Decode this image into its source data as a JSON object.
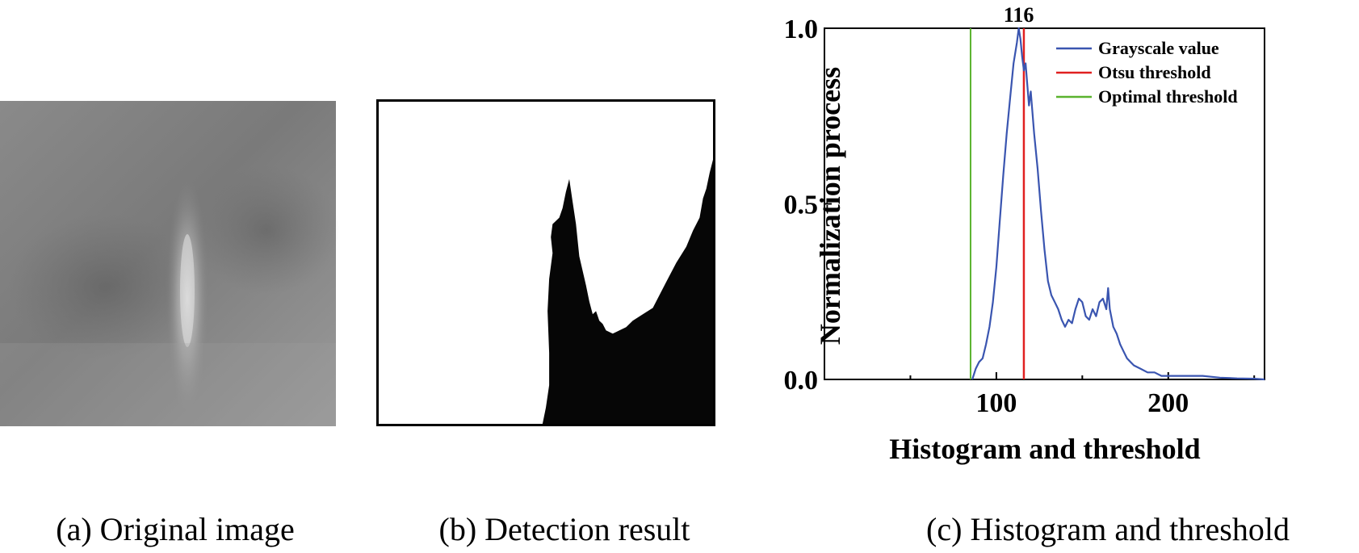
{
  "captions": {
    "a": "(a) Original image",
    "b": "(b) Detection result",
    "c": "(c) Histogram and threshold"
  },
  "chart_data": {
    "type": "line",
    "xlabel": "Histogram and threshold",
    "ylabel": "Normalization process",
    "xlim": [
      0,
      256
    ],
    "ylim": [
      0,
      1.0
    ],
    "xticks": [
      100,
      200
    ],
    "yticks": [
      0.0,
      0.5,
      1.0
    ],
    "ytick_labels": [
      "0.0",
      "0.5",
      "1.0"
    ],
    "grid": false,
    "legend_position": "top-right",
    "peak_label": "116",
    "peak_label_x": 113,
    "series": [
      {
        "name": "Grayscale value",
        "color": "#3a55b0",
        "x": [
          86,
          88,
          90,
          92,
          94,
          96,
          98,
          100,
          102,
          104,
          106,
          108,
          110,
          112,
          113,
          114,
          115,
          116,
          117,
          118,
          119,
          120,
          122,
          124,
          126,
          128,
          130,
          132,
          134,
          136,
          138,
          140,
          142,
          144,
          146,
          148,
          150,
          152,
          154,
          156,
          158,
          160,
          162,
          164,
          165,
          166,
          168,
          170,
          172,
          174,
          176,
          178,
          180,
          184,
          188,
          192,
          196,
          200,
          205,
          210,
          215,
          220,
          230,
          240,
          250,
          256
        ],
        "y": [
          0.0,
          0.03,
          0.05,
          0.06,
          0.1,
          0.15,
          0.22,
          0.32,
          0.45,
          0.58,
          0.7,
          0.8,
          0.9,
          0.96,
          1.0,
          0.97,
          0.92,
          0.88,
          0.9,
          0.84,
          0.78,
          0.82,
          0.7,
          0.6,
          0.48,
          0.37,
          0.28,
          0.24,
          0.22,
          0.2,
          0.17,
          0.15,
          0.17,
          0.16,
          0.2,
          0.23,
          0.22,
          0.18,
          0.17,
          0.2,
          0.18,
          0.22,
          0.23,
          0.2,
          0.26,
          0.2,
          0.15,
          0.13,
          0.1,
          0.08,
          0.06,
          0.05,
          0.04,
          0.03,
          0.02,
          0.02,
          0.01,
          0.01,
          0.01,
          0.01,
          0.01,
          0.01,
          0.005,
          0.003,
          0.002,
          0.0
        ]
      },
      {
        "name": "Otsu threshold",
        "color": "#e02020",
        "x_value": 116
      },
      {
        "name": "Optimal threshold",
        "color": "#5ab32e",
        "x_value": 85
      }
    ]
  },
  "binary_mask": {
    "polygon_x": [
      0.49,
      0.5,
      0.51,
      0.51,
      0.505,
      0.51,
      0.52,
      0.515,
      0.52,
      0.54,
      0.55,
      0.56,
      0.57,
      0.58,
      0.59,
      0.6,
      0.62,
      0.63,
      0.64,
      0.65,
      0.66,
      0.67,
      0.68,
      0.7,
      0.72,
      0.74,
      0.76,
      0.79,
      0.82,
      0.86,
      0.89,
      0.92,
      0.94,
      0.96,
      0.97,
      0.98,
      0.99,
      1.0,
      1.0,
      0.49
    ],
    "polygon_y": [
      1.0,
      0.95,
      0.88,
      0.78,
      0.65,
      0.55,
      0.47,
      0.42,
      0.38,
      0.36,
      0.33,
      0.28,
      0.24,
      0.31,
      0.38,
      0.48,
      0.57,
      0.62,
      0.66,
      0.65,
      0.68,
      0.69,
      0.71,
      0.72,
      0.71,
      0.7,
      0.68,
      0.66,
      0.64,
      0.56,
      0.5,
      0.45,
      0.4,
      0.36,
      0.3,
      0.27,
      0.22,
      0.18,
      1.0,
      1.0
    ]
  }
}
